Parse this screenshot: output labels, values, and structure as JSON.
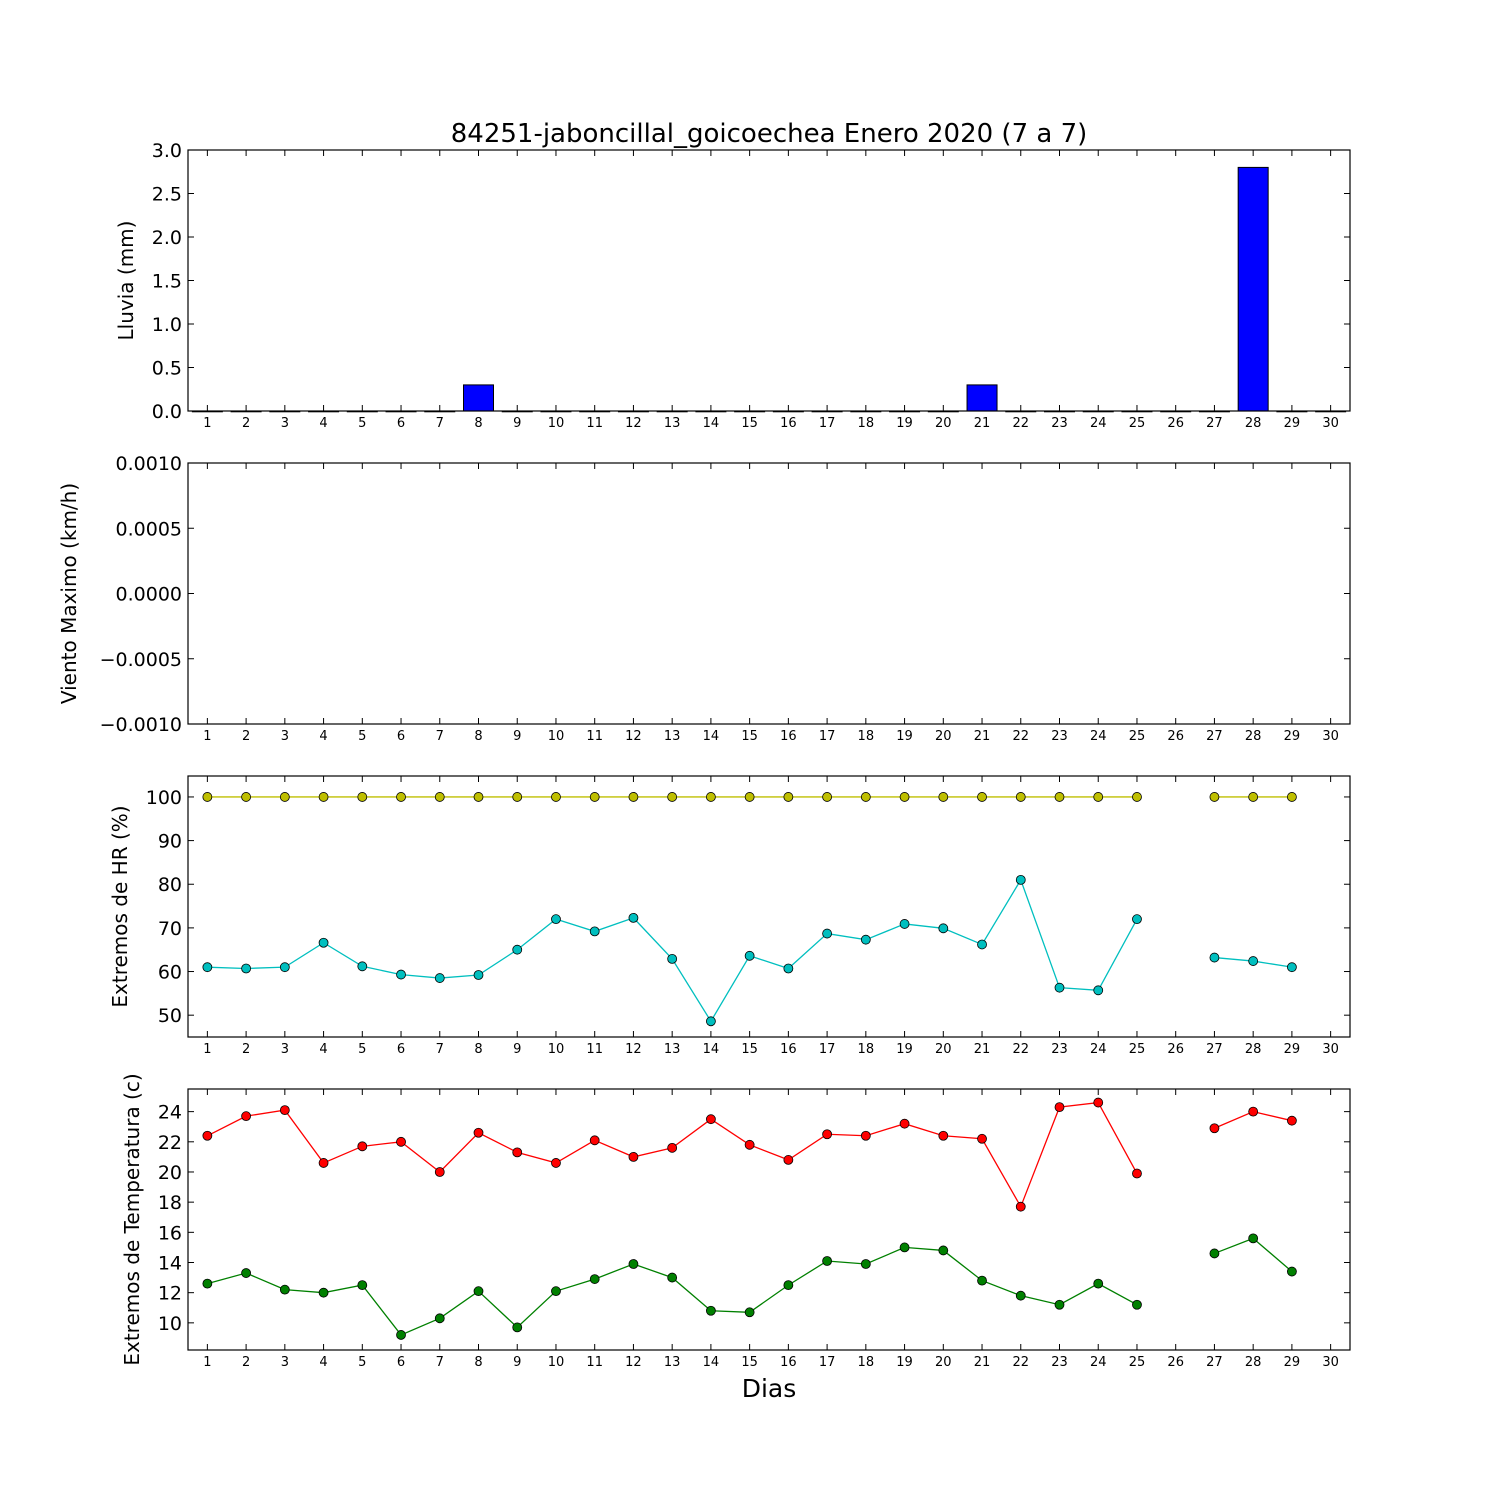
{
  "chart_data": [
    {
      "type": "bar",
      "panel": "lluvia",
      "title": "84251-jaboncillal_goicoechea Enero 2020  (7 a 7)",
      "ylabel": "Lluvia (mm)",
      "xlabel": "",
      "ylim": [
        0,
        3.0
      ],
      "yticks": [
        "0.0",
        "0.5",
        "1.0",
        "1.5",
        "2.0",
        "2.5",
        "3.0"
      ],
      "xlim": [
        0.5,
        30.5
      ],
      "xticks": [
        "1",
        "2",
        "3",
        "4",
        "5",
        "6",
        "7",
        "8",
        "9",
        "10",
        "11",
        "12",
        "13",
        "14",
        "15",
        "16",
        "17",
        "18",
        "19",
        "20",
        "21",
        "22",
        "23",
        "24",
        "25",
        "26",
        "27",
        "28",
        "29",
        "30"
      ],
      "x": [
        1,
        2,
        3,
        4,
        5,
        6,
        7,
        8,
        9,
        10,
        11,
        12,
        13,
        14,
        15,
        16,
        17,
        18,
        19,
        20,
        21,
        22,
        23,
        24,
        25,
        26,
        27,
        28,
        29,
        30
      ],
      "values": [
        0,
        0,
        0,
        0,
        0,
        0,
        0,
        0.3,
        0,
        0,
        0,
        0,
        0,
        0,
        0,
        0,
        0,
        0,
        0,
        0,
        0.3,
        0,
        0,
        0,
        0,
        0,
        0,
        2.8,
        0,
        0
      ],
      "color": "#0000ff"
    },
    {
      "type": "line",
      "panel": "viento",
      "ylabel": "Viento Maximo (km/h)",
      "ylim": [
        -0.001,
        0.001
      ],
      "yticks": [
        "−0.0010",
        "−0.0005",
        "0.0000",
        "0.0005",
        "0.0010"
      ],
      "xlim": [
        0.5,
        30.5
      ],
      "xticks": [
        "1",
        "2",
        "3",
        "4",
        "5",
        "6",
        "7",
        "8",
        "9",
        "10",
        "11",
        "12",
        "13",
        "14",
        "15",
        "16",
        "17",
        "18",
        "19",
        "20",
        "21",
        "22",
        "23",
        "24",
        "25",
        "26",
        "27",
        "28",
        "29",
        "30"
      ],
      "series": []
    },
    {
      "type": "line",
      "panel": "humedad",
      "ylabel": "Extremos de HR (%)",
      "ylim": [
        45,
        104.8
      ],
      "yticks": [
        "50",
        "60",
        "70",
        "80",
        "90",
        "100"
      ],
      "xlim": [
        0.5,
        30.5
      ],
      "xticks": [
        "1",
        "2",
        "3",
        "4",
        "5",
        "6",
        "7",
        "8",
        "9",
        "10",
        "11",
        "12",
        "13",
        "14",
        "15",
        "16",
        "17",
        "18",
        "19",
        "20",
        "21",
        "22",
        "23",
        "24",
        "25",
        "26",
        "27",
        "28",
        "29",
        "30"
      ],
      "x": [
        1,
        2,
        3,
        4,
        5,
        6,
        7,
        8,
        9,
        10,
        11,
        12,
        13,
        14,
        15,
        16,
        17,
        18,
        19,
        20,
        21,
        22,
        23,
        24,
        25,
        26,
        27,
        28,
        29
      ],
      "series": [
        {
          "color": "#bfbf00",
          "values": [
            100,
            100,
            100,
            100,
            100,
            100,
            100,
            100,
            100,
            100,
            100,
            100,
            100,
            100,
            100,
            100,
            100,
            100,
            100,
            100,
            100,
            100,
            100,
            100,
            100,
            null,
            100,
            100,
            100
          ]
        },
        {
          "color": "#00bfbf",
          "values": [
            61,
            60.7,
            61,
            66.6,
            61.2,
            59.3,
            58.5,
            59.2,
            65,
            72,
            69.2,
            72.3,
            62.9,
            48.6,
            63.6,
            60.7,
            68.7,
            67.3,
            70.9,
            69.9,
            66.2,
            81,
            56.3,
            55.7,
            72,
            null,
            63.2,
            62.4,
            61
          ]
        }
      ]
    },
    {
      "type": "line",
      "panel": "temperatura",
      "ylabel": "Extremos de Temperatura (c)",
      "xlabel": "Dias",
      "ylim": [
        8.2,
        25.5
      ],
      "yticks": [
        "10",
        "12",
        "14",
        "16",
        "18",
        "20",
        "22",
        "24"
      ],
      "xlim": [
        0.5,
        30.5
      ],
      "xticks": [
        "1",
        "2",
        "3",
        "4",
        "5",
        "6",
        "7",
        "8",
        "9",
        "10",
        "11",
        "12",
        "13",
        "14",
        "15",
        "16",
        "17",
        "18",
        "19",
        "20",
        "21",
        "22",
        "23",
        "24",
        "25",
        "26",
        "27",
        "28",
        "29",
        "30"
      ],
      "x": [
        1,
        2,
        3,
        4,
        5,
        6,
        7,
        8,
        9,
        10,
        11,
        12,
        13,
        14,
        15,
        16,
        17,
        18,
        19,
        20,
        21,
        22,
        23,
        24,
        25,
        26,
        27,
        28,
        29
      ],
      "series": [
        {
          "color": "#ff0000",
          "values": [
            22.4,
            23.7,
            24.1,
            20.6,
            21.7,
            22,
            20,
            22.6,
            21.3,
            20.6,
            22.1,
            21,
            21.6,
            23.5,
            21.8,
            20.8,
            22.5,
            22.4,
            23.2,
            22.4,
            22.2,
            17.7,
            24.3,
            24.6,
            19.9,
            null,
            22.9,
            24,
            23.4
          ]
        },
        {
          "color": "#008000",
          "values": [
            12.6,
            13.3,
            12.2,
            12,
            12.5,
            9.2,
            10.3,
            12.1,
            9.7,
            12.1,
            12.9,
            13.9,
            13,
            10.8,
            10.7,
            12.5,
            14.1,
            13.9,
            15,
            14.8,
            12.8,
            11.8,
            11.2,
            12.6,
            11.2,
            null,
            14.6,
            15.6,
            13.4
          ]
        }
      ]
    }
  ]
}
